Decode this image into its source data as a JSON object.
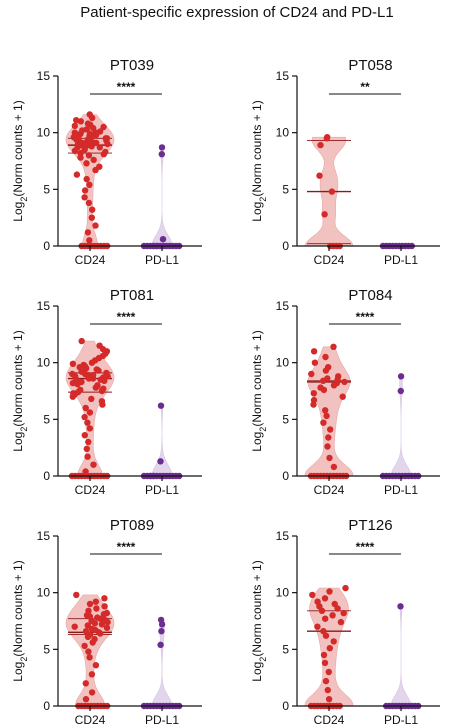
{
  "figure_title": "Patient-specific expression of CD24 and PD-L1",
  "colors": {
    "cd24": "#d42a2a",
    "cd24_violin": "#f2c2c0",
    "cd24_line": "#8b1a1a",
    "pdl1": "#6b2d8f",
    "pdl1_violin": "#e3d6ec",
    "axis": "#111111"
  },
  "chart_data": [
    {
      "type": "scatter",
      "title": "PT039",
      "ylabel": "Log2(Norm counts + 1)",
      "ylim": [
        0,
        15
      ],
      "yticks": [
        0,
        5,
        10,
        15
      ],
      "categories": [
        "CD24",
        "PD-L1"
      ],
      "significance": "****",
      "series": [
        {
          "name": "CD24",
          "median": 8.9,
          "quartiles": [
            8.2,
            9.5
          ],
          "values": [
            11.6,
            11.3,
            11.1,
            11.0,
            10.8,
            10.7,
            10.6,
            10.5,
            10.4,
            10.3,
            10.2,
            10.1,
            10.0,
            10.0,
            9.9,
            9.9,
            9.8,
            9.8,
            9.7,
            9.7,
            9.6,
            9.6,
            9.5,
            9.5,
            9.4,
            9.4,
            9.3,
            9.3,
            9.2,
            9.2,
            9.1,
            9.1,
            9.0,
            9.0,
            8.9,
            8.9,
            8.8,
            8.8,
            8.7,
            8.7,
            8.6,
            8.5,
            8.4,
            8.3,
            8.2,
            8.1,
            8.0,
            7.8,
            7.6,
            7.3,
            7.0,
            6.7,
            6.3,
            5.9,
            5.4,
            4.9,
            4.3,
            3.8,
            3.2,
            2.5,
            1.8,
            1.2,
            0.5,
            0,
            0,
            0,
            0,
            0,
            0,
            0,
            0,
            0
          ]
        },
        {
          "name": "PD-L1",
          "median": 0,
          "quartiles": [
            0,
            0
          ],
          "values": [
            8.7,
            8.1,
            0.6,
            0,
            0,
            0,
            0,
            0,
            0,
            0,
            0,
            0,
            0,
            0,
            0,
            0,
            0
          ]
        }
      ]
    },
    {
      "type": "scatter",
      "title": "PT058",
      "ylabel": "Log2(Norm counts + 1)",
      "ylim": [
        0,
        15
      ],
      "yticks": [
        0,
        5,
        10,
        15
      ],
      "categories": [
        "CD24",
        "PD-L1"
      ],
      "significance": "**",
      "series": [
        {
          "name": "CD24",
          "median": 4.8,
          "quartiles": [
            0.2,
            9.3
          ],
          "values": [
            9.6,
            9.5,
            8.9,
            6.2,
            4.8,
            2.8,
            0,
            0,
            0,
            0
          ]
        },
        {
          "name": "PD-L1",
          "median": 0,
          "quartiles": [
            0,
            0
          ],
          "values": [
            0,
            0,
            0,
            0,
            0,
            0,
            0,
            0,
            0,
            0
          ]
        }
      ]
    },
    {
      "type": "scatter",
      "title": "PT081",
      "ylabel": "Log2(Norm counts + 1)",
      "ylim": [
        0,
        15
      ],
      "yticks": [
        0,
        5,
        10,
        15
      ],
      "categories": [
        "CD24",
        "PD-L1"
      ],
      "significance": "****",
      "series": [
        {
          "name": "CD24",
          "median": 8.6,
          "quartiles": [
            7.4,
            9.1
          ],
          "values": [
            11.9,
            11.5,
            11.2,
            11.0,
            10.8,
            10.6,
            10.4,
            10.2,
            10.0,
            9.9,
            9.8,
            9.7,
            9.6,
            9.5,
            9.4,
            9.3,
            9.2,
            9.1,
            9.0,
            9.0,
            8.9,
            8.9,
            8.8,
            8.8,
            8.7,
            8.7,
            8.6,
            8.6,
            8.5,
            8.5,
            8.4,
            8.3,
            8.2,
            8.1,
            8.0,
            7.9,
            7.8,
            7.7,
            7.6,
            7.5,
            7.4,
            7.3,
            7.2,
            7.0,
            6.8,
            6.6,
            6.3,
            6.0,
            5.6,
            5.2,
            4.7,
            4.2,
            3.6,
            3.0,
            2.4,
            1.7,
            1.0,
            0.4,
            0,
            0,
            0,
            0,
            0,
            0,
            0,
            0,
            0,
            0,
            0,
            0
          ]
        },
        {
          "name": "PD-L1",
          "median": 0,
          "quartiles": [
            0,
            0
          ],
          "values": [
            6.2,
            1.3,
            0,
            0,
            0,
            0,
            0,
            0,
            0,
            0,
            0,
            0,
            0,
            0,
            0,
            0
          ]
        }
      ]
    },
    {
      "type": "scatter",
      "title": "PT084",
      "ylabel": "Log2(Norm counts + 1)",
      "ylim": [
        0,
        15
      ],
      "yticks": [
        0,
        5,
        10,
        15
      ],
      "categories": [
        "CD24",
        "PD-L1"
      ],
      "significance": "****",
      "series": [
        {
          "name": "CD24",
          "median": 8.3,
          "quartiles": [
            0,
            8.4
          ],
          "values": [
            11.4,
            11.0,
            10.5,
            10.0,
            9.6,
            9.3,
            9.0,
            8.8,
            8.6,
            8.5,
            8.4,
            8.3,
            8.2,
            8.0,
            7.8,
            7.6,
            7.3,
            7.0,
            6.7,
            6.3,
            5.8,
            5.3,
            4.7,
            4.1,
            3.4,
            2.6,
            1.6,
            0.8,
            0,
            0,
            0,
            0,
            0,
            0,
            0,
            0,
            0,
            0,
            0,
            0
          ]
        },
        {
          "name": "PD-L1",
          "median": 0,
          "quartiles": [
            0,
            0
          ],
          "values": [
            8.8,
            7.5,
            0,
            0,
            0,
            0,
            0,
            0,
            0,
            0,
            0,
            0,
            0,
            0
          ]
        }
      ]
    },
    {
      "type": "scatter",
      "title": "PT089",
      "ylabel": "Log2(Norm counts + 1)",
      "ylim": [
        0,
        15
      ],
      "yticks": [
        0,
        5,
        10,
        15
      ],
      "categories": [
        "CD24",
        "PD-L1"
      ],
      "significance": "****",
      "series": [
        {
          "name": "CD24",
          "median": 6.5,
          "quartiles": [
            6.3,
            7.7
          ],
          "values": [
            9.8,
            9.5,
            9.2,
            9.0,
            8.8,
            8.6,
            8.4,
            8.2,
            8.1,
            8.0,
            7.9,
            7.8,
            7.7,
            7.6,
            7.5,
            7.4,
            7.3,
            7.2,
            7.1,
            7.0,
            6.9,
            6.8,
            6.7,
            6.6,
            6.5,
            6.4,
            6.3,
            6.1,
            5.9,
            5.6,
            5.3,
            4.8,
            4.3,
            3.6,
            2.8,
            2.0,
            1.2,
            0.6,
            0,
            0,
            0,
            0,
            0,
            0,
            0,
            0,
            0,
            0
          ]
        },
        {
          "name": "PD-L1",
          "median": 0,
          "quartiles": [
            0,
            0
          ],
          "values": [
            7.6,
            7.2,
            6.6,
            5.4,
            0,
            0,
            0,
            0,
            0,
            0,
            0,
            0,
            0,
            0,
            0,
            0
          ]
        }
      ]
    },
    {
      "type": "scatter",
      "title": "PT126",
      "ylabel": "Log2(Norm counts + 1)",
      "ylim": [
        0,
        15
      ],
      "yticks": [
        0,
        5,
        10,
        15
      ],
      "categories": [
        "CD24",
        "PD-L1"
      ],
      "significance": "****",
      "series": [
        {
          "name": "CD24",
          "median": 6.6,
          "quartiles": [
            0,
            8.4
          ],
          "values": [
            10.4,
            10.1,
            9.8,
            9.5,
            9.2,
            9.0,
            8.8,
            8.6,
            8.4,
            8.2,
            8.0,
            7.7,
            7.4,
            7.0,
            6.6,
            6.2,
            5.7,
            5.1,
            4.5,
            3.8,
            3.0,
            2.2,
            1.4,
            0.6,
            0,
            0,
            0,
            0,
            0,
            0,
            0,
            0,
            0,
            0
          ]
        },
        {
          "name": "PD-L1",
          "median": 0,
          "quartiles": [
            0,
            0
          ],
          "values": [
            8.8,
            0,
            0,
            0,
            0,
            0,
            0,
            0,
            0,
            0,
            0,
            0
          ]
        }
      ]
    }
  ]
}
